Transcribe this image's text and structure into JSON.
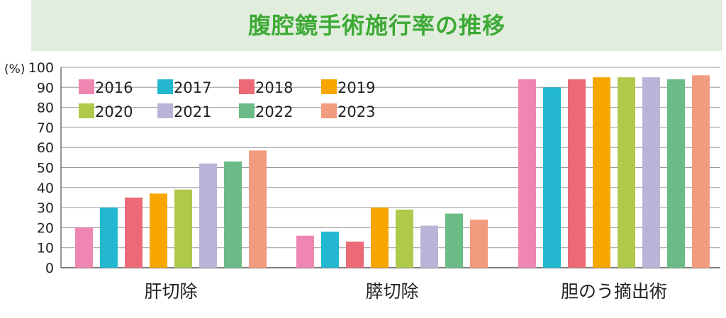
{
  "title": "腹腔鏡手術施行率の推移",
  "chart_data": {
    "type": "bar",
    "title": "腹腔鏡手術施行率の推移",
    "ylabel": "(%)",
    "xlabel": "",
    "ylim": [
      0,
      100
    ],
    "yticks": [
      0,
      10,
      20,
      30,
      40,
      50,
      60,
      70,
      80,
      90,
      100
    ],
    "grid": true,
    "legend_position": "top-left",
    "categories": [
      "肝切除",
      "膵切除",
      "胆のう摘出術"
    ],
    "series": [
      {
        "name": "2016",
        "color": "#ef86b1",
        "values": [
          20,
          16,
          94
        ]
      },
      {
        "name": "2017",
        "color": "#23b8cf",
        "values": [
          30,
          18,
          90
        ]
      },
      {
        "name": "2018",
        "color": "#ec6a77",
        "values": [
          35,
          13,
          94
        ]
      },
      {
        "name": "2019",
        "color": "#f7a600",
        "values": [
          37,
          30,
          95
        ]
      },
      {
        "name": "2020",
        "color": "#afc94b",
        "values": [
          39,
          29,
          95
        ]
      },
      {
        "name": "2021",
        "color": "#bbb4d8",
        "values": [
          52,
          21,
          95
        ]
      },
      {
        "name": "2022",
        "color": "#6bbb86",
        "values": [
          53,
          27,
          94
        ]
      },
      {
        "name": "2023",
        "color": "#f29c7f",
        "values": [
          58.5,
          24,
          96
        ]
      }
    ]
  }
}
